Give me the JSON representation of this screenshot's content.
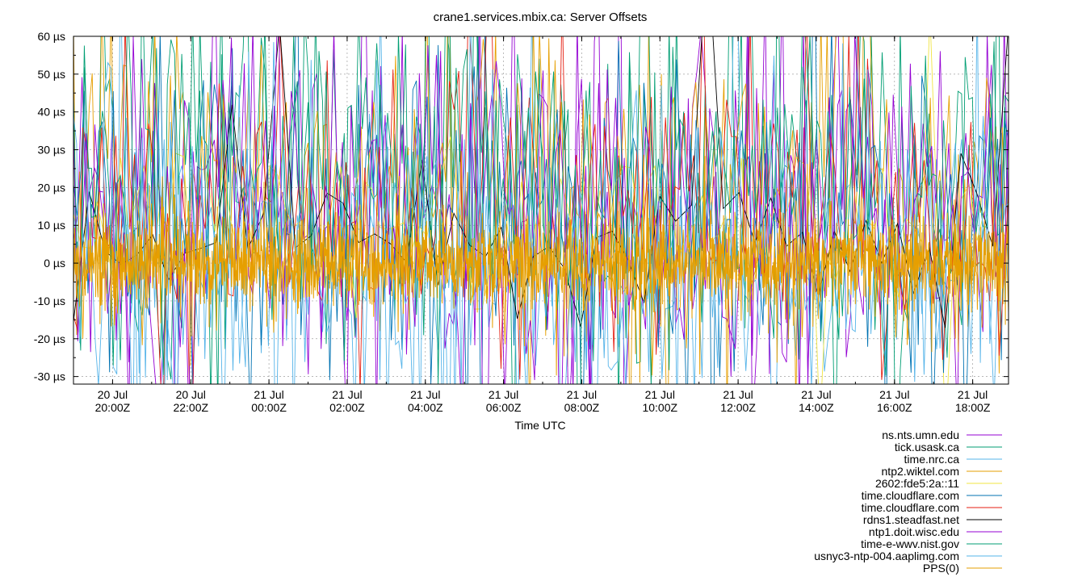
{
  "chart_data": {
    "type": "line",
    "title": "crane1.services.mbix.ca: Server Offsets",
    "xlabel": "Time UTC",
    "ylabel": "",
    "ylim": [
      -32,
      60
    ],
    "xlim": [
      "2023-07-20T19:00Z",
      "2023-07-21T18:55Z"
    ],
    "grid": true,
    "legend_position": "bottom-right",
    "y_ticks": [
      {
        "value": 60,
        "label": "60 µs"
      },
      {
        "value": 50,
        "label": "50 µs"
      },
      {
        "value": 40,
        "label": "40 µs"
      },
      {
        "value": 30,
        "label": "30 µs"
      },
      {
        "value": 20,
        "label": "20 µs"
      },
      {
        "value": 10,
        "label": "10 µs"
      },
      {
        "value": 0,
        "label": "0 µs"
      },
      {
        "value": -10,
        "label": "-10 µs"
      },
      {
        "value": -20,
        "label": "-20 µs"
      },
      {
        "value": -30,
        "label": "-30 µs"
      }
    ],
    "x_ticks": [
      {
        "value": "2023-07-20T20:00Z",
        "date": "20 Jul",
        "time": "20:00Z"
      },
      {
        "value": "2023-07-20T22:00Z",
        "date": "20 Jul",
        "time": "22:00Z"
      },
      {
        "value": "2023-07-21T00:00Z",
        "date": "21 Jul",
        "time": "00:00Z"
      },
      {
        "value": "2023-07-21T02:00Z",
        "date": "21 Jul",
        "time": "02:00Z"
      },
      {
        "value": "2023-07-21T04:00Z",
        "date": "21 Jul",
        "time": "04:00Z"
      },
      {
        "value": "2023-07-21T06:00Z",
        "date": "21 Jul",
        "time": "06:00Z"
      },
      {
        "value": "2023-07-21T08:00Z",
        "date": "21 Jul",
        "time": "08:00Z"
      },
      {
        "value": "2023-07-21T10:00Z",
        "date": "21 Jul",
        "time": "10:00Z"
      },
      {
        "value": "2023-07-21T12:00Z",
        "date": "21 Jul",
        "time": "12:00Z"
      },
      {
        "value": "2023-07-21T14:00Z",
        "date": "21 Jul",
        "time": "14:00Z"
      },
      {
        "value": "2023-07-21T16:00Z",
        "date": "21 Jul",
        "time": "16:00Z"
      },
      {
        "value": "2023-07-21T18:00Z",
        "date": "21 Jul",
        "time": "18:00Z"
      }
    ],
    "series": [
      {
        "name": "ns.nts.umn.edu",
        "color": "#9400d3",
        "typical_range": [
          -32,
          60
        ]
      },
      {
        "name": "tick.usask.ca",
        "color": "#009e73",
        "typical_range": [
          -20,
          60
        ]
      },
      {
        "name": "time.nrc.ca",
        "color": "#56b4e9",
        "typical_range": [
          -32,
          30
        ]
      },
      {
        "name": "ntp2.wiktel.com",
        "color": "#e69f00",
        "typical_range": [
          -20,
          60
        ]
      },
      {
        "name": "2602:fde5:2a::11",
        "color": "#f0e442",
        "typical_range": [
          -10,
          30
        ]
      },
      {
        "name": "time.cloudflare.com",
        "color": "#0072b2",
        "typical_range": [
          -25,
          50
        ]
      },
      {
        "name": "time.cloudflare.com",
        "color": "#e51e10",
        "typical_range": [
          -20,
          50
        ]
      },
      {
        "name": "rdns1.steadfast.net",
        "color": "#000000",
        "typical_range": [
          -10,
          20
        ]
      },
      {
        "name": "ntp1.doit.wisc.edu",
        "color": "#9400d3",
        "typical_range": [
          -32,
          60
        ]
      },
      {
        "name": "time-e-wwv.nist.gov",
        "color": "#009e73",
        "typical_range": [
          -25,
          60
        ]
      },
      {
        "name": "usnyc3-ntp-004.aaplimg.com",
        "color": "#56b4e9",
        "typical_range": [
          -32,
          40
        ]
      },
      {
        "name": "PPS(0)",
        "color": "#e69f00",
        "typical_range": [
          -15,
          20
        ]
      }
    ]
  }
}
